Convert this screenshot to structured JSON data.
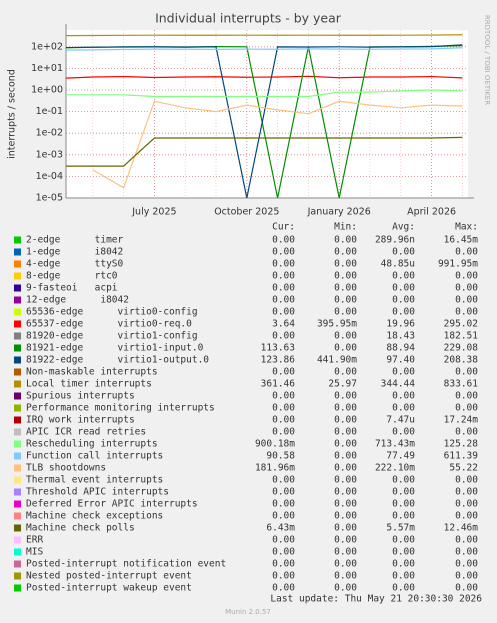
{
  "chart_data": {
    "type": "line",
    "title": "Individual interrupts - by year",
    "y_label": "interrupts / second",
    "side_label": "RRDTOOL / TOBI OETIKER",
    "log_scale": true,
    "grid": true,
    "ylim": [
      1e-05,
      600
    ],
    "yticks": [
      {
        "value": 1e-05,
        "label": "1e-05"
      },
      {
        "value": 0.0001,
        "label": "1e-04"
      },
      {
        "value": 0.001,
        "label": "1e-03"
      },
      {
        "value": 0.01,
        "label": "1e-02"
      },
      {
        "value": 0.1,
        "label": "1e-01"
      },
      {
        "value": 1,
        "label": "1e+00"
      },
      {
        "value": 10,
        "label": "1e+01"
      },
      {
        "value": 100,
        "label": "1e+02"
      }
    ],
    "categories": [
      null,
      null,
      null,
      "July 2025",
      null,
      null,
      "October 2025",
      null,
      null,
      "January 2026",
      null,
      null,
      "April 2026",
      null
    ],
    "legend_columns": [
      "Cur:",
      "Min:",
      "Avg:",
      "Max:"
    ],
    "series": [
      {
        "name": "2-edge      timer",
        "color": "#00cc00",
        "values": [
          0,
          0,
          0,
          0,
          0,
          0,
          0,
          0,
          0,
          0,
          0,
          0,
          0,
          0
        ],
        "stats": {
          "cur": "0.00",
          "min": "0.00",
          "avg": "289.96n",
          "max": "16.45m"
        }
      },
      {
        "name": "1-edge      i8042",
        "color": "#0066b3",
        "values": [
          0,
          0,
          0,
          0,
          0,
          0,
          0,
          0,
          0,
          0,
          0,
          0,
          0,
          0
        ],
        "stats": {
          "cur": "0.00",
          "min": "0.00",
          "avg": "0.00",
          "max": "0.00"
        }
      },
      {
        "name": "4-edge      ttyS0",
        "color": "#ff8000",
        "values": [
          0,
          0.0001,
          0,
          0,
          2e-05,
          0,
          0,
          0,
          5e-05,
          0,
          0.0001,
          0,
          0,
          0
        ],
        "stats": {
          "cur": "0.00",
          "min": "0.00",
          "avg": "48.85u",
          "max": "991.95m"
        }
      },
      {
        "name": "8-edge      rtc0",
        "color": "#ffcc00",
        "values": [
          0,
          0,
          0,
          0,
          0,
          0,
          0,
          0,
          0,
          0,
          0,
          0,
          0,
          0
        ],
        "stats": {
          "cur": "0.00",
          "min": "0.00",
          "avg": "0.00",
          "max": "0.00"
        }
      },
      {
        "name": "9-fasteoi   acpi",
        "color": "#330099",
        "values": [
          0,
          0,
          0,
          0,
          0,
          0,
          0,
          0,
          0,
          0,
          0,
          0,
          0,
          0
        ],
        "stats": {
          "cur": "0.00",
          "min": "0.00",
          "avg": "0.00",
          "max": "0.00"
        }
      },
      {
        "name": "12-edge      i8042",
        "color": "#990099",
        "values": [
          0,
          0,
          0,
          0,
          0,
          0,
          0,
          0,
          0,
          0,
          0,
          0,
          0,
          0
        ],
        "stats": {
          "cur": "0.00",
          "min": "0.00",
          "avg": "0.00",
          "max": "0.00"
        }
      },
      {
        "name": "65536-edge      virtio0-config",
        "color": "#ccff00",
        "values": [
          0,
          0,
          0,
          0,
          0,
          0,
          0,
          0,
          0,
          0,
          0,
          0,
          0,
          0
        ],
        "stats": {
          "cur": "0.00",
          "min": "0.00",
          "avg": "0.00",
          "max": "0.00"
        }
      },
      {
        "name": "65537-edge      virtio0-req.0",
        "color": "#ff0000",
        "values": [
          3.5,
          4,
          4.2,
          3.8,
          4,
          4.1,
          3.9,
          4,
          4.3,
          3.7,
          4,
          4,
          4.2,
          3.64
        ],
        "stats": {
          "cur": "3.64",
          "min": "395.95m",
          "avg": "19.96",
          "max": "295.02"
        }
      },
      {
        "name": "81920-edge      virtio1-config",
        "color": "#808080",
        "values": [
          0,
          0,
          0,
          0,
          0,
          0,
          120,
          0,
          0,
          150,
          0,
          0,
          0,
          0
        ],
        "stats": {
          "cur": "0.00",
          "min": "0.00",
          "avg": "18.43",
          "max": "182.51"
        }
      },
      {
        "name": "81921-edge      virtio1-input.0",
        "color": "#008f00",
        "values": [
          90,
          95,
          100,
          100,
          98,
          102,
          100,
          1e-05,
          100,
          1e-05,
          100,
          100,
          105,
          113.63
        ],
        "stats": {
          "cur": "113.63",
          "min": "0.00",
          "avg": "88.94",
          "max": "229.08"
        }
      },
      {
        "name": "81922-edge      virtio1-output.0",
        "color": "#00487d",
        "values": [
          92,
          96,
          98,
          99,
          97,
          100,
          1e-05,
          99,
          98,
          100,
          97,
          99,
          102,
          123.86
        ],
        "stats": {
          "cur": "123.86",
          "min": "441.90m",
          "avg": "97.40",
          "max": "208.38"
        }
      },
      {
        "name": "Non-maskable interrupts",
        "color": "#b35a00",
        "values": [
          0,
          0,
          0,
          0,
          0,
          0,
          0,
          0,
          0,
          0,
          0,
          0,
          0,
          0
        ],
        "stats": {
          "cur": "0.00",
          "min": "0.00",
          "avg": "0.00",
          "max": "0.00"
        }
      },
      {
        "name": "Local timer interrupts",
        "color": "#b38f00",
        "values": [
          330,
          335,
          340,
          345,
          344,
          344,
          346,
          343,
          345,
          344,
          342,
          345,
          350,
          361.46
        ],
        "stats": {
          "cur": "361.46",
          "min": "25.97",
          "avg": "344.44",
          "max": "833.61"
        }
      },
      {
        "name": "Spurious interrupts",
        "color": "#6b006b",
        "values": [
          0,
          0,
          0,
          0,
          0,
          0,
          0,
          0,
          0,
          0,
          0,
          0,
          0,
          0
        ],
        "stats": {
          "cur": "0.00",
          "min": "0.00",
          "avg": "0.00",
          "max": "0.00"
        }
      },
      {
        "name": "Performance monitoring interrupts",
        "color": "#8fb300",
        "values": [
          0,
          0,
          0,
          0,
          0,
          0,
          0,
          0,
          0,
          0,
          0,
          0,
          0,
          0
        ],
        "stats": {
          "cur": "0.00",
          "min": "0.00",
          "avg": "0.00",
          "max": "0.00"
        }
      },
      {
        "name": "IRQ work interrupts",
        "color": "#b30000",
        "values": [
          0,
          0,
          5e-05,
          0,
          2e-05,
          0,
          8e-05,
          0,
          0,
          3e-05,
          0,
          0,
          0.0001,
          0
        ],
        "stats": {
          "cur": "0.00",
          "min": "0.00",
          "avg": "7.47u",
          "max": "17.24m"
        }
      },
      {
        "name": "APIC ICR read retries",
        "color": "#bebebe",
        "values": [
          0,
          0,
          0,
          0,
          0,
          0,
          0,
          0,
          0,
          0,
          0,
          0,
          0,
          0
        ],
        "stats": {
          "cur": "0.00",
          "min": "0.00",
          "avg": "0.00",
          "max": "0.00"
        }
      },
      {
        "name": "Rescheduling interrupts",
        "color": "#80ff80",
        "values": [
          0.6,
          0.6,
          0.6,
          0.5,
          0.5,
          0.5,
          0.5,
          0.5,
          0.5,
          0.8,
          0.8,
          0.9,
          1,
          0.9
        ],
        "stats": {
          "cur": "900.18m",
          "min": "0.00",
          "avg": "713.43m",
          "max": "125.28"
        }
      },
      {
        "name": "Function call interrupts",
        "color": "#80c9ff",
        "values": [
          70,
          72,
          75,
          78,
          77,
          76,
          78,
          77,
          80,
          78,
          77,
          79,
          80,
          90.58
        ],
        "stats": {
          "cur": "90.58",
          "min": "0.00",
          "avg": "77.49",
          "max": "611.39"
        }
      },
      {
        "name": "TLB shootdowns",
        "color": "#ffc080",
        "values": [
          0,
          0.0002,
          3e-05,
          0.3,
          0.15,
          0.1,
          0.2,
          0.12,
          0.08,
          0.3,
          0.2,
          0.15,
          0.2,
          0.18
        ],
        "stats": {
          "cur": "181.96m",
          "min": "0.00",
          "avg": "222.10m",
          "max": "55.22"
        }
      },
      {
        "name": "Thermal event interrupts",
        "color": "#ffe680",
        "values": [
          0,
          0,
          0,
          0,
          0,
          0,
          0,
          0,
          0,
          0,
          0,
          0,
          0,
          0
        ],
        "stats": {
          "cur": "0.00",
          "min": "0.00",
          "avg": "0.00",
          "max": "0.00"
        }
      },
      {
        "name": "Threshold APIC interrupts",
        "color": "#aa80ff",
        "values": [
          0,
          0,
          0,
          0,
          0,
          0,
          0,
          0,
          0,
          0,
          0,
          0,
          0,
          0
        ],
        "stats": {
          "cur": "0.00",
          "min": "0.00",
          "avg": "0.00",
          "max": "0.00"
        }
      },
      {
        "name": "Deferred Error APIC interrupts",
        "color": "#ee00cc",
        "values": [
          0,
          0,
          0,
          0,
          0,
          0,
          0,
          0,
          0,
          0,
          0,
          0,
          0,
          0
        ],
        "stats": {
          "cur": "0.00",
          "min": "0.00",
          "avg": "0.00",
          "max": "0.00"
        }
      },
      {
        "name": "Machine check exceptions",
        "color": "#ff8080",
        "values": [
          0,
          0,
          0,
          0,
          0,
          0,
          0,
          0,
          0,
          0,
          0,
          0,
          0,
          0
        ],
        "stats": {
          "cur": "0.00",
          "min": "0.00",
          "avg": "0.00",
          "max": "0.00"
        }
      },
      {
        "name": "Machine check polls",
        "color": "#666600",
        "values": [
          0.0003,
          0.0003,
          0.0003,
          0.006,
          0.006,
          0.006,
          0.006,
          0.006,
          0.006,
          0.006,
          0.006,
          0.006,
          0.006,
          0.00643
        ],
        "stats": {
          "cur": "6.43m",
          "min": "0.00",
          "avg": "5.57m",
          "max": "12.46m"
        }
      },
      {
        "name": "ERR",
        "color": "#ffbfff",
        "values": [
          0,
          0,
          0,
          0,
          0,
          0,
          0,
          0,
          0,
          0,
          0,
          0,
          0,
          0
        ],
        "stats": {
          "cur": "0.00",
          "min": "0.00",
          "avg": "0.00",
          "max": "0.00"
        }
      },
      {
        "name": "MIS",
        "color": "#00ffcc",
        "values": [
          0,
          0,
          0,
          0,
          0,
          0,
          0,
          0,
          0,
          0,
          0,
          0,
          0,
          0
        ],
        "stats": {
          "cur": "0.00",
          "min": "0.00",
          "avg": "0.00",
          "max": "0.00"
        }
      },
      {
        "name": "Posted-interrupt notification event",
        "color": "#cc6699",
        "values": [
          0,
          0,
          0,
          0,
          0,
          0,
          0,
          0,
          0,
          0,
          0,
          0,
          0,
          0
        ],
        "stats": {
          "cur": "0.00",
          "min": "0.00",
          "avg": "0.00",
          "max": "0.00"
        }
      },
      {
        "name": "Nested posted-interrupt event",
        "color": "#999900",
        "values": [
          0,
          0,
          0,
          0,
          0,
          0,
          0,
          0,
          0,
          0,
          0,
          0,
          0,
          0
        ],
        "stats": {
          "cur": "0.00",
          "min": "0.00",
          "avg": "0.00",
          "max": "0.00"
        }
      },
      {
        "name": "Posted-interrupt wakeup event",
        "color": "#00cc00",
        "values": [
          0,
          0,
          0,
          0,
          0,
          0,
          0,
          0,
          0,
          0,
          0,
          0,
          0,
          0
        ],
        "stats": {
          "cur": "0.00",
          "min": "0.00",
          "avg": "0.00",
          "max": "0.00"
        }
      }
    ],
    "last_update": "Last update: Thu May 21 20:30:30 2026",
    "footer": "Munin 2.0.57"
  }
}
